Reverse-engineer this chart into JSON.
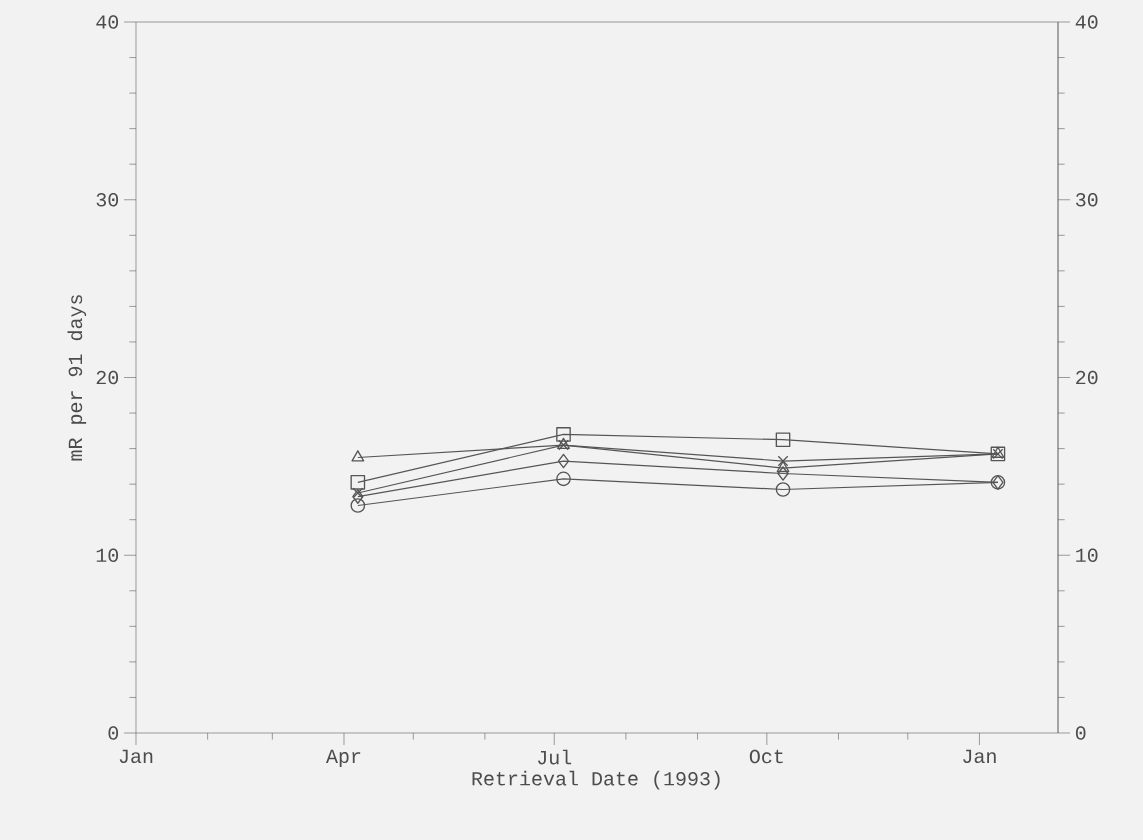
{
  "chart_data": {
    "type": "line",
    "xlabel": "Retrieval Date (1993)",
    "ylabel": "mR per 91 days",
    "x": [
      "1993-04-07",
      "1993-07-05",
      "1993-10-08",
      "1994-01-09"
    ],
    "series": [
      {
        "color": "#555555",
        "marker": "triangle",
        "values": [
          15.5,
          16.2,
          14.9,
          15.7
        ]
      },
      {
        "color": "#555555",
        "marker": "square",
        "values": [
          14.1,
          16.8,
          16.5,
          15.7
        ]
      },
      {
        "color": "#555555",
        "marker": "cross",
        "values": [
          13.5,
          16.2,
          15.3,
          15.7
        ]
      },
      {
        "color": "#555555",
        "marker": "diamond",
        "values": [
          13.3,
          15.3,
          14.6,
          14.1
        ]
      },
      {
        "color": "#555555",
        "marker": "circle",
        "values": [
          12.8,
          14.3,
          13.7,
          14.1
        ]
      }
    ],
    "xlim": [
      "1993-01-01",
      "1994-02-04"
    ],
    "xticks": [
      {
        "value": "1993-01-01",
        "label": "Jan"
      },
      {
        "value": "1993-02-01",
        "label": null
      },
      {
        "value": "1993-03-01",
        "label": null
      },
      {
        "value": "1993-04-01",
        "label": "Apr"
      },
      {
        "value": "1993-05-01",
        "label": null
      },
      {
        "value": "1993-06-01",
        "label": null
      },
      {
        "value": "1993-07-01",
        "label": "Jul"
      },
      {
        "value": "1993-08-01",
        "label": null
      },
      {
        "value": "1993-09-01",
        "label": null
      },
      {
        "value": "1993-10-01",
        "label": "Oct"
      },
      {
        "value": "1993-11-01",
        "label": null
      },
      {
        "value": "1993-12-01",
        "label": null
      },
      {
        "value": "1994-01-01",
        "label": "Jan"
      }
    ],
    "ylim": [
      0,
      40
    ],
    "yticks": [
      0,
      {
        "value": 2,
        "label": null
      },
      {
        "value": 4,
        "label": null
      },
      {
        "value": 6,
        "label": null
      },
      {
        "value": 8,
        "label": null
      },
      10,
      {
        "value": 12,
        "label": null
      },
      {
        "value": 14,
        "label": null
      },
      {
        "value": 16,
        "label": null
      },
      {
        "value": 18,
        "label": null
      },
      20,
      {
        "value": 22,
        "label": null
      },
      {
        "value": 24,
        "label": null
      },
      {
        "value": 26,
        "label": null
      },
      {
        "value": 28,
        "label": null
      },
      30,
      {
        "value": 32,
        "label": null
      },
      {
        "value": 34,
        "label": null
      },
      {
        "value": 36,
        "label": null
      },
      {
        "value": 38,
        "label": null
      },
      40
    ],
    "y2lim": [
      0,
      40
    ],
    "y2ticks": [
      0,
      {
        "value": 2,
        "label": null
      },
      {
        "value": 4,
        "label": null
      },
      {
        "value": 6,
        "label": null
      },
      {
        "value": 8,
        "label": null
      },
      10,
      {
        "value": 12,
        "label": null
      },
      {
        "value": 14,
        "label": null
      },
      {
        "value": 16,
        "label": null
      },
      {
        "value": 18,
        "label": null
      },
      20,
      {
        "value": 22,
        "label": null
      },
      {
        "value": 24,
        "label": null
      },
      {
        "value": 26,
        "label": null
      },
      {
        "value": 28,
        "label": null
      },
      30,
      {
        "value": 32,
        "label": null
      },
      {
        "value": 34,
        "label": null
      },
      {
        "value": 36,
        "label": null
      },
      {
        "value": 38,
        "label": null
      },
      40
    ],
    "grid": false
  }
}
